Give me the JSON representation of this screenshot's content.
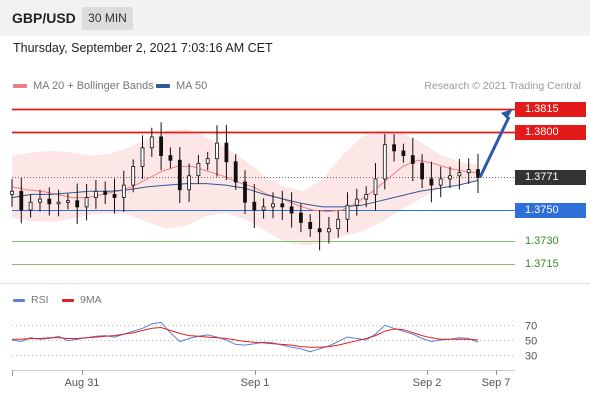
{
  "header": {
    "symbol": "GBP/USD",
    "timeframe": "30 MIN"
  },
  "datetime": "Thursday, September 2, 2021 7:03:16 AM CET",
  "legend": {
    "ma20_label": "MA 20 + Bollinger Bands",
    "ma50_label": "MA 50",
    "ma20_color": "#f08080",
    "ma50_color": "#2a5a9a"
  },
  "research_text": "Research © 2021 Trading Central",
  "indicator_legend": {
    "rsi_label": "RSI",
    "ma9_label": "9MA",
    "rsi_color": "#5b7fd6",
    "ma9_color": "#e02020"
  },
  "chart_data": [
    {
      "type": "candlestick",
      "title": "",
      "x_tick_labels": [
        "Aug 31",
        "Sep 1",
        "Sep 2",
        "Sep 7"
      ],
      "ylim": [
        1.3705,
        1.3822
      ],
      "levels": [
        {
          "value": 1.3815,
          "label": "1.3815",
          "kind": "resistance",
          "color": "#e21a1a"
        },
        {
          "value": 1.38,
          "label": "1.3800",
          "kind": "resistance",
          "color": "#e21a1a"
        },
        {
          "value": 1.3771,
          "label": "1.3771",
          "kind": "last_price",
          "color": "#333333"
        },
        {
          "value": 1.375,
          "label": "1.3750",
          "kind": "pivot",
          "color": "#2f6fd8"
        },
        {
          "value": 1.373,
          "label": "1.3730",
          "kind": "support",
          "color": "#3a8a22"
        },
        {
          "value": 1.3715,
          "label": "1.3715",
          "kind": "support",
          "color": "#3a8a22"
        }
      ],
      "close_path": [
        1.3762,
        1.375,
        1.3755,
        1.3757,
        1.3754,
        1.3755,
        1.3756,
        1.3752,
        1.3758,
        1.3762,
        1.376,
        1.3758,
        1.3766,
        1.3778,
        1.379,
        1.3797,
        1.3785,
        1.3782,
        1.3763,
        1.3772,
        1.378,
        1.3783,
        1.3793,
        1.3781,
        1.3768,
        1.3755,
        1.375,
        1.3752,
        1.3754,
        1.3752,
        1.3748,
        1.3742,
        1.3738,
        1.3736,
        1.3738,
        1.3744,
        1.3753,
        1.3757,
        1.376,
        1.377,
        1.3792,
        1.3788,
        1.3785,
        1.378,
        1.377,
        1.3766,
        1.377,
        1.3772,
        1.3774,
        1.3776,
        1.3771
      ],
      "ma20_path": [
        1.3765,
        1.3763,
        1.3762,
        1.376,
        1.3758,
        1.3758,
        1.376,
        1.3762,
        1.3765,
        1.377,
        1.3775,
        1.3778,
        1.3778,
        1.3775,
        1.3772,
        1.3768,
        1.3765,
        1.376,
        1.3757,
        1.3753,
        1.375,
        1.3749,
        1.375,
        1.3755,
        1.3762,
        1.377,
        1.3778,
        1.3782,
        1.378,
        1.3777,
        1.3775,
        1.3774
      ],
      "ma50_path": [
        1.3758,
        1.376,
        1.376,
        1.3761,
        1.3762,
        1.3762,
        1.3763,
        1.3765,
        1.3766,
        1.3767,
        1.3767,
        1.3766,
        1.3764,
        1.376,
        1.3757,
        1.3754,
        1.3752,
        1.3752,
        1.3753,
        1.3756,
        1.3759,
        1.3762,
        1.3764,
        1.3766,
        1.3769
      ],
      "bollinger_upper": [
        1.3785,
        1.3787,
        1.3788,
        1.3787,
        1.3785,
        1.3786,
        1.379,
        1.3796,
        1.3801,
        1.3802,
        1.3797,
        1.379,
        1.3782,
        1.3772,
        1.3765,
        1.3762,
        1.377,
        1.3785,
        1.3797,
        1.3801,
        1.38,
        1.3794,
        1.3786,
        1.3781,
        1.3779
      ],
      "bollinger_lower": [
        1.3745,
        1.3743,
        1.3742,
        1.3744,
        1.3747,
        1.3748,
        1.3747,
        1.3742,
        1.3738,
        1.374,
        1.3746,
        1.3748,
        1.3744,
        1.3737,
        1.373,
        1.3727,
        1.3729,
        1.3733,
        1.3736,
        1.3742,
        1.375,
        1.3757,
        1.3764,
        1.3767,
        1.3768
      ],
      "projection": {
        "from": 1.3771,
        "to": 1.3815
      }
    },
    {
      "type": "line",
      "title": "",
      "ylim": [
        20,
        80
      ],
      "y_ticks": [
        "70",
        "50",
        "30"
      ],
      "series": [
        {
          "name": "RSI",
          "values": [
            50,
            48,
            53,
            51,
            52,
            55,
            49,
            51,
            53,
            55,
            56,
            54,
            58,
            62,
            66,
            72,
            74,
            60,
            48,
            52,
            55,
            57,
            54,
            50,
            44,
            43,
            45,
            47,
            46,
            43,
            40,
            38,
            34,
            38,
            42,
            48,
            54,
            52,
            50,
            58,
            70,
            66,
            62,
            58,
            52,
            48,
            50,
            51,
            53,
            52,
            47
          ]
        },
        {
          "name": "9MA",
          "values": [
            51,
            51,
            52,
            52,
            53,
            53,
            52,
            52,
            53,
            54,
            55,
            56,
            58,
            60,
            63,
            66,
            67,
            63,
            59,
            56,
            55,
            54,
            53,
            52,
            50,
            48,
            47,
            46,
            45,
            44,
            43,
            41,
            40,
            40,
            41,
            43,
            46,
            49,
            52,
            56,
            62,
            65,
            64,
            60,
            56,
            53,
            51,
            51,
            51,
            51,
            50
          ]
        }
      ]
    }
  ]
}
